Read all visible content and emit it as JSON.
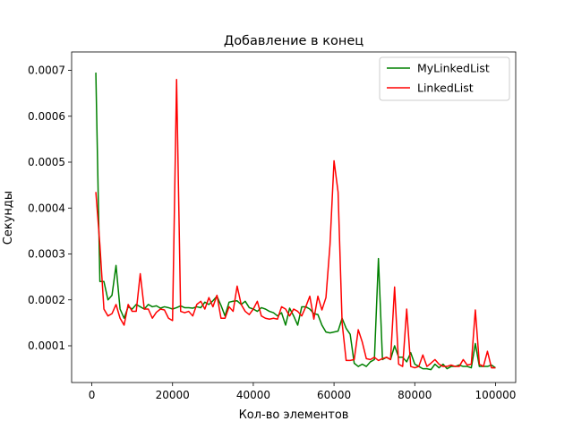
{
  "chart_data": {
    "type": "line",
    "title": "Добавление в конец",
    "xlabel": "Кол-во элементов",
    "ylabel": "Секунды",
    "xlim": [
      -5000,
      105000
    ],
    "ylim": [
      2e-05,
      0.00074
    ],
    "xticks": [
      0,
      20000,
      40000,
      60000,
      80000,
      100000
    ],
    "xtick_labels": [
      "0",
      "20000",
      "40000",
      "60000",
      "80000",
      "100000"
    ],
    "yticks": [
      0.0001,
      0.0002,
      0.0003,
      0.0004,
      0.0005,
      0.0006,
      0.0007
    ],
    "ytick_labels": [
      "0.0001",
      "0.0002",
      "0.0003",
      "0.0004",
      "0.0005",
      "0.0006",
      "0.0007"
    ],
    "legend_position": "top-right",
    "grid": false,
    "x": [
      1000,
      2000,
      3000,
      4000,
      5000,
      6000,
      7000,
      8000,
      9000,
      10000,
      11000,
      12000,
      13000,
      14000,
      15000,
      16000,
      17000,
      18000,
      19000,
      20000,
      21000,
      22000,
      23000,
      24000,
      25000,
      26000,
      27000,
      28000,
      29000,
      30000,
      31000,
      32000,
      33000,
      34000,
      35000,
      36000,
      37000,
      38000,
      39000,
      40000,
      41000,
      42000,
      43000,
      44000,
      45000,
      46000,
      47000,
      48000,
      49000,
      50000,
      51000,
      52000,
      53000,
      54000,
      55000,
      56000,
      57000,
      58000,
      59000,
      60000,
      61000,
      62000,
      63000,
      64000,
      65000,
      66000,
      67000,
      68000,
      69000,
      70000,
      71000,
      72000,
      73000,
      74000,
      75000,
      76000,
      77000,
      78000,
      79000,
      80000,
      81000,
      82000,
      83000,
      84000,
      85000,
      86000,
      87000,
      88000,
      89000,
      90000,
      91000,
      92000,
      93000,
      94000,
      95000,
      96000,
      97000,
      98000,
      99000,
      100000
    ],
    "series": [
      {
        "name": "MyLinkedList",
        "color": "#008000",
        "values": [
          0.000695,
          0.00024,
          0.00024,
          0.0002,
          0.00021,
          0.000275,
          0.00018,
          0.00016,
          0.000185,
          0.00018,
          0.00019,
          0.000185,
          0.00018,
          0.00019,
          0.000185,
          0.000187,
          0.000182,
          0.000185,
          0.000183,
          0.00018,
          0.000183,
          0.000187,
          0.000183,
          0.000183,
          0.000182,
          0.000185,
          0.000183,
          0.000195,
          0.00019,
          0.000198,
          0.000208,
          0.000188,
          0.000165,
          0.000195,
          0.000197,
          0.000198,
          0.00019,
          0.000197,
          0.000183,
          0.00018,
          0.000175,
          0.000183,
          0.00018,
          0.000175,
          0.000172,
          0.000165,
          0.000172,
          0.000145,
          0.000182,
          0.000165,
          0.000145,
          0.000185,
          0.000185,
          0.00018,
          0.00017,
          0.000168,
          0.000145,
          0.00013,
          0.000128,
          0.00013,
          0.000132,
          0.00016,
          0.000138,
          0.000125,
          6.2e-05,
          5.5e-05,
          6e-05,
          5.5e-05,
          6.5e-05,
          7e-05,
          0.00029,
          7e-05,
          7.5e-05,
          7e-05,
          0.0001,
          7.5e-05,
          7.5e-05,
          6.5e-05,
          8.5e-05,
          6e-05,
          5.5e-05,
          5e-05,
          5e-05,
          4.8e-05,
          6e-05,
          5.2e-05,
          6e-05,
          5e-05,
          5.5e-05,
          5.5e-05,
          5.8e-05,
          5.5e-05,
          5.5e-05,
          5.2e-05,
          0.000105,
          5.5e-05,
          5.5e-05,
          5.5e-05,
          5.8e-05,
          5.2e-05
        ]
      },
      {
        "name": "LinkedList",
        "color": "#ff0000",
        "values": [
          0.000435,
          0.00032,
          0.00018,
          0.000165,
          0.00017,
          0.00019,
          0.00016,
          0.000145,
          0.00019,
          0.000175,
          0.000175,
          0.000257,
          0.00018,
          0.00018,
          0.00016,
          0.000173,
          0.00018,
          0.000178,
          0.00016,
          0.000155,
          0.00068,
          0.000175,
          0.000172,
          0.000175,
          0.000165,
          0.00019,
          0.000197,
          0.00018,
          0.000205,
          0.000185,
          0.00021,
          0.00016,
          0.00016,
          0.000185,
          0.000175,
          0.00023,
          0.00019,
          0.000175,
          0.000168,
          0.00018,
          0.000197,
          0.000165,
          0.00016,
          0.000158,
          0.00016,
          0.000158,
          0.000185,
          0.00018,
          0.000165,
          0.00018,
          0.000175,
          0.000165,
          0.000185,
          0.000208,
          0.000158,
          0.000208,
          0.000178,
          0.000205,
          0.00032,
          0.000503,
          0.000435,
          0.00015,
          6.8e-05,
          6.8e-05,
          7e-05,
          0.000135,
          0.000108,
          7.2e-05,
          7e-05,
          7.5e-05,
          6.8e-05,
          7.2e-05,
          7.5e-05,
          7e-05,
          0.000228,
          6e-05,
          5.5e-05,
          0.00018,
          5.5e-05,
          5.2e-05,
          5.5e-05,
          8e-05,
          5.5e-05,
          6.2e-05,
          7e-05,
          6e-05,
          5.5e-05,
          5.5e-05,
          5.8e-05,
          5.5e-05,
          5.5e-05,
          7e-05,
          5.8e-05,
          6e-05,
          0.000178,
          6e-05,
          5.5e-05,
          8.8e-05,
          5.2e-05,
          5.2e-05
        ]
      }
    ]
  }
}
